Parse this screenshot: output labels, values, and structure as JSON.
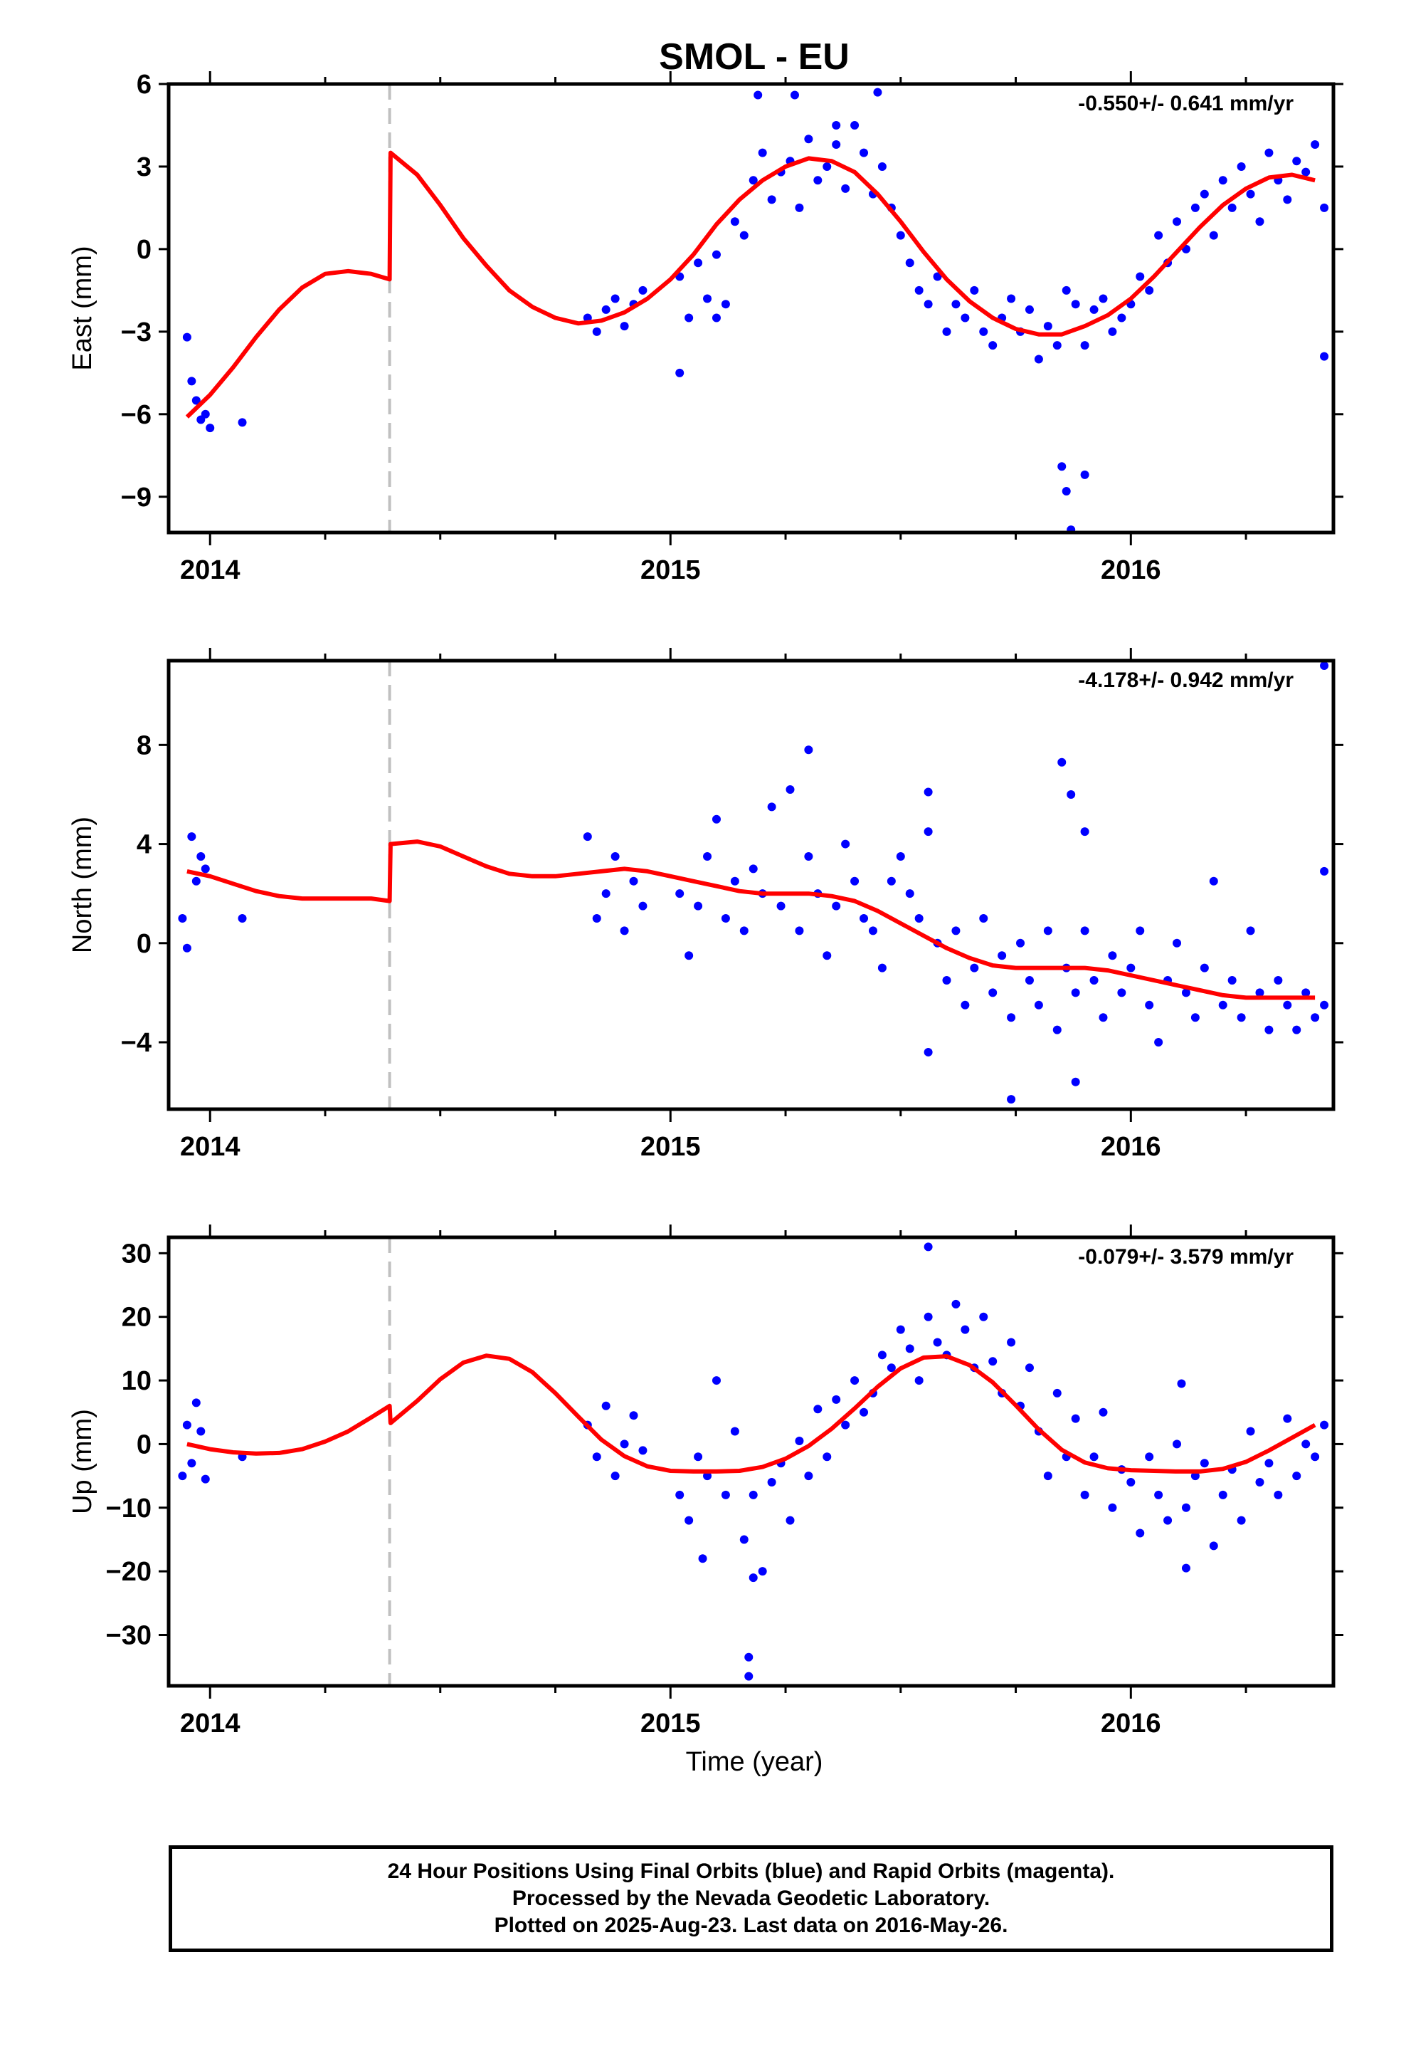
{
  "title": "SMOL - EU",
  "xlabel": "Time (year)",
  "footer": {
    "line1": "24 Hour Positions Using Final Orbits (blue) and Rapid Orbits (magenta).",
    "line2": "Processed by the Nevada Geodetic Laboratory.",
    "line3": "Plotted on 2025-Aug-23. Last data on 2016-May-26."
  },
  "colors": {
    "points": "#0000ff",
    "fit": "#ff0000",
    "break_line": "#c0c0c0",
    "frame": "#000000"
  },
  "chart_data": [
    {
      "type": "scatter",
      "component": "East",
      "ylabel": "East (mm)",
      "rate_label": "-0.550+/- 0.641 mm/yr",
      "xlim": [
        2013.91,
        2016.44
      ],
      "ylim": [
        -10.3,
        6.0
      ],
      "yticks": [
        6,
        3,
        0,
        -3,
        -6,
        -9
      ],
      "xticks": [
        2014,
        2015,
        2016
      ],
      "break_line_x": 2014.39,
      "fit_curve": {
        "name": "model",
        "x": [
          2013.95,
          2014.0,
          2014.05,
          2014.1,
          2014.15,
          2014.2,
          2014.25,
          2014.3,
          2014.35,
          2014.39,
          2014.392,
          2014.45,
          2014.5,
          2014.55,
          2014.6,
          2014.65,
          2014.7,
          2014.75,
          2014.8,
          2014.85,
          2014.9,
          2014.95,
          2015.0,
          2015.05,
          2015.1,
          2015.15,
          2015.2,
          2015.25,
          2015.3,
          2015.35,
          2015.4,
          2015.45,
          2015.5,
          2015.55,
          2015.6,
          2015.65,
          2015.7,
          2015.75,
          2015.8,
          2015.85,
          2015.9,
          2015.95,
          2016.0,
          2016.05,
          2016.1,
          2016.15,
          2016.2,
          2016.25,
          2016.3,
          2016.35,
          2016.4
        ],
        "y": [
          -6.1,
          -5.3,
          -4.3,
          -3.2,
          -2.2,
          -1.4,
          -0.9,
          -0.8,
          -0.9,
          -1.1,
          3.5,
          2.7,
          1.6,
          0.4,
          -0.6,
          -1.5,
          -2.1,
          -2.5,
          -2.7,
          -2.6,
          -2.3,
          -1.8,
          -1.1,
          -0.2,
          0.9,
          1.8,
          2.5,
          3.0,
          3.3,
          3.2,
          2.8,
          2.0,
          1.0,
          -0.1,
          -1.1,
          -1.9,
          -2.5,
          -2.9,
          -3.1,
          -3.1,
          -2.8,
          -2.4,
          -1.8,
          -1.0,
          -0.1,
          0.8,
          1.6,
          2.2,
          2.6,
          2.7,
          2.5
        ]
      },
      "points": {
        "name": "daily positions",
        "x": [
          2013.95,
          2013.96,
          2013.97,
          2013.98,
          2013.99,
          2014.0,
          2014.07,
          2014.82,
          2014.84,
          2014.86,
          2014.88,
          2014.9,
          2014.92,
          2014.94,
          2015.02,
          2015.04,
          2015.06,
          2015.08,
          2015.1,
          2015.12,
          2015.14,
          2015.16,
          2015.18,
          2015.2,
          2015.22,
          2015.24,
          2015.26,
          2015.28,
          2015.3,
          2015.32,
          2015.34,
          2015.36,
          2015.38,
          2015.4,
          2015.42,
          2015.44,
          2015.46,
          2015.48,
          2015.5,
          2015.52,
          2015.54,
          2015.56,
          2015.58,
          2015.6,
          2015.62,
          2015.64,
          2015.66,
          2015.68,
          2015.7,
          2015.72,
          2015.74,
          2015.76,
          2015.78,
          2015.8,
          2015.82,
          2015.84,
          2015.86,
          2015.88,
          2015.9,
          2015.92,
          2015.94,
          2015.96,
          2015.98,
          2016.0,
          2016.02,
          2016.04,
          2016.06,
          2016.08,
          2016.1,
          2016.12,
          2016.14,
          2016.16,
          2016.18,
          2016.2,
          2016.22,
          2016.24,
          2016.26,
          2016.28,
          2016.3,
          2016.32,
          2016.34,
          2016.36,
          2016.38,
          2016.4,
          2016.42,
          2015.19,
          2015.27,
          2015.36,
          2015.45,
          2015.85,
          2015.86,
          2015.87,
          2015.9,
          2016.42,
          2015.02,
          2015.1
        ],
        "y": [
          -3.2,
          -4.8,
          -5.5,
          -6.2,
          -6.0,
          -6.5,
          -6.3,
          -2.5,
          -3.0,
          -2.2,
          -1.8,
          -2.8,
          -2.0,
          -1.5,
          -1.0,
          -2.5,
          -0.5,
          -1.8,
          -0.2,
          -2.0,
          1.0,
          0.5,
          2.5,
          3.5,
          1.8,
          2.8,
          3.2,
          1.5,
          4.0,
          2.5,
          3.0,
          3.8,
          2.2,
          4.5,
          3.5,
          2.0,
          3.0,
          1.5,
          0.5,
          -0.5,
          -1.5,
          -2.0,
          -1.0,
          -3.0,
          -2.0,
          -2.5,
          -1.5,
          -3.0,
          -3.5,
          -2.5,
          -1.8,
          -3.0,
          -2.2,
          -4.0,
          -2.8,
          -3.5,
          -1.5,
          -2.0,
          -3.5,
          -2.2,
          -1.8,
          -3.0,
          -2.5,
          -2.0,
          -1.0,
          -1.5,
          0.5,
          -0.5,
          1.0,
          0.0,
          1.5,
          2.0,
          0.5,
          2.5,
          1.5,
          3.0,
          2.0,
          1.0,
          3.5,
          2.5,
          1.8,
          3.2,
          2.8,
          3.8,
          1.5,
          5.6,
          5.6,
          4.5,
          5.7,
          -7.9,
          -8.8,
          -10.2,
          -8.2,
          -3.9,
          -4.5,
          -2.5
        ]
      }
    },
    {
      "type": "scatter",
      "component": "North",
      "ylabel": "North (mm)",
      "rate_label": "-4.178+/- 0.942 mm/yr",
      "xlim": [
        2013.91,
        2016.44
      ],
      "ylim": [
        -6.7,
        11.4
      ],
      "yticks": [
        8,
        4,
        0,
        -4
      ],
      "xticks": [
        2014,
        2015,
        2016
      ],
      "break_line_x": 2014.39,
      "fit_curve": {
        "name": "model",
        "x": [
          2013.95,
          2014.0,
          2014.05,
          2014.1,
          2014.15,
          2014.2,
          2014.25,
          2014.3,
          2014.35,
          2014.39,
          2014.392,
          2014.45,
          2014.5,
          2014.55,
          2014.6,
          2014.65,
          2014.7,
          2014.75,
          2014.8,
          2014.85,
          2014.9,
          2014.95,
          2015.0,
          2015.05,
          2015.1,
          2015.15,
          2015.2,
          2015.25,
          2015.3,
          2015.35,
          2015.4,
          2015.45,
          2015.5,
          2015.55,
          2015.6,
          2015.65,
          2015.7,
          2015.75,
          2015.8,
          2015.85,
          2015.9,
          2015.95,
          2016.0,
          2016.05,
          2016.1,
          2016.15,
          2016.2,
          2016.25,
          2016.3,
          2016.35,
          2016.4
        ],
        "y": [
          2.9,
          2.7,
          2.4,
          2.1,
          1.9,
          1.8,
          1.8,
          1.8,
          1.8,
          1.7,
          4.0,
          4.1,
          3.9,
          3.5,
          3.1,
          2.8,
          2.7,
          2.7,
          2.8,
          2.9,
          3.0,
          2.9,
          2.7,
          2.5,
          2.3,
          2.1,
          2.0,
          2.0,
          2.0,
          1.9,
          1.7,
          1.3,
          0.8,
          0.3,
          -0.2,
          -0.6,
          -0.9,
          -1.0,
          -1.0,
          -1.0,
          -1.0,
          -1.1,
          -1.3,
          -1.5,
          -1.7,
          -1.9,
          -2.1,
          -2.2,
          -2.2,
          -2.2,
          -2.2
        ]
      },
      "points": {
        "name": "daily positions",
        "x": [
          2013.94,
          2013.95,
          2013.96,
          2013.97,
          2013.98,
          2013.99,
          2014.07,
          2014.82,
          2014.84,
          2014.86,
          2014.88,
          2014.9,
          2014.92,
          2014.94,
          2015.02,
          2015.04,
          2015.06,
          2015.08,
          2015.1,
          2015.12,
          2015.14,
          2015.16,
          2015.18,
          2015.2,
          2015.22,
          2015.24,
          2015.26,
          2015.28,
          2015.3,
          2015.32,
          2015.34,
          2015.36,
          2015.38,
          2015.4,
          2015.42,
          2015.44,
          2015.46,
          2015.48,
          2015.5,
          2015.52,
          2015.54,
          2015.56,
          2015.58,
          2015.6,
          2015.62,
          2015.64,
          2015.66,
          2015.68,
          2015.7,
          2015.72,
          2015.74,
          2015.76,
          2015.78,
          2015.8,
          2015.82,
          2015.84,
          2015.86,
          2015.88,
          2015.9,
          2015.92,
          2015.94,
          2015.96,
          2015.98,
          2016.0,
          2016.02,
          2016.04,
          2016.06,
          2016.08,
          2016.1,
          2016.12,
          2016.14,
          2016.16,
          2016.18,
          2016.2,
          2016.22,
          2016.24,
          2016.26,
          2016.28,
          2016.3,
          2016.32,
          2016.34,
          2016.36,
          2016.38,
          2016.4,
          2016.42,
          2015.3,
          2015.56,
          2015.85,
          2015.87,
          2015.9,
          2016.42,
          2016.42,
          2015.74,
          2015.88,
          2015.56
        ],
        "y": [
          1.0,
          -0.2,
          4.3,
          2.5,
          3.5,
          3.0,
          1.0,
          4.3,
          1.0,
          2.0,
          3.5,
          0.5,
          2.5,
          1.5,
          2.0,
          -0.5,
          1.5,
          3.5,
          5.0,
          1.0,
          2.5,
          0.5,
          3.0,
          2.0,
          5.5,
          1.5,
          6.2,
          0.5,
          3.5,
          2.0,
          -0.5,
          1.5,
          4.0,
          2.5,
          1.0,
          0.5,
          -1.0,
          2.5,
          3.5,
          2.0,
          1.0,
          4.5,
          0.0,
          -1.5,
          0.5,
          -2.5,
          -1.0,
          1.0,
          -2.0,
          -0.5,
          -3.0,
          0.0,
          -1.5,
          -2.5,
          0.5,
          -3.5,
          -1.0,
          -2.0,
          0.5,
          -1.5,
          -3.0,
          -0.5,
          -2.0,
          -1.0,
          0.5,
          -2.5,
          -4.0,
          -1.5,
          0.0,
          -2.0,
          -3.0,
          -1.0,
          2.5,
          -2.5,
          -1.5,
          -3.0,
          0.5,
          -2.0,
          -3.5,
          -1.5,
          -2.5,
          -3.5,
          -2.0,
          -3.0,
          -2.5,
          7.8,
          6.1,
          7.3,
          6.0,
          4.5,
          11.2,
          2.9,
          -6.3,
          -5.6,
          -4.4
        ]
      }
    },
    {
      "type": "scatter",
      "component": "Up",
      "ylabel": "Up (mm)",
      "rate_label": "-0.079+/- 3.579 mm/yr",
      "xlim": [
        2013.91,
        2016.44
      ],
      "ylim": [
        -38.0,
        32.5
      ],
      "yticks": [
        30,
        20,
        10,
        0,
        -10,
        -20,
        -30
      ],
      "xticks": [
        2014,
        2015,
        2016
      ],
      "break_line_x": 2014.39,
      "fit_curve": {
        "name": "model",
        "x": [
          2013.95,
          2014.0,
          2014.05,
          2014.1,
          2014.15,
          2014.2,
          2014.25,
          2014.3,
          2014.35,
          2014.39,
          2014.392,
          2014.45,
          2014.5,
          2014.55,
          2014.6,
          2014.65,
          2014.7,
          2014.75,
          2014.8,
          2014.85,
          2014.9,
          2014.95,
          2015.0,
          2015.05,
          2015.1,
          2015.15,
          2015.2,
          2015.25,
          2015.3,
          2015.35,
          2015.4,
          2015.45,
          2015.5,
          2015.55,
          2015.6,
          2015.65,
          2015.7,
          2015.75,
          2015.8,
          2015.85,
          2015.9,
          2015.95,
          2016.0,
          2016.05,
          2016.1,
          2016.15,
          2016.2,
          2016.25,
          2016.3,
          2016.35,
          2016.4
        ],
        "y": [
          0.0,
          -0.8,
          -1.3,
          -1.5,
          -1.4,
          -0.8,
          0.4,
          2.0,
          4.2,
          6.0,
          3.3,
          6.8,
          10.2,
          12.8,
          13.9,
          13.4,
          11.3,
          8.0,
          4.3,
          0.7,
          -1.9,
          -3.5,
          -4.2,
          -4.3,
          -4.3,
          -4.2,
          -3.6,
          -2.3,
          -0.3,
          2.4,
          5.6,
          9.0,
          11.9,
          13.6,
          13.8,
          12.4,
          9.7,
          6.1,
          2.3,
          -0.9,
          -2.9,
          -3.8,
          -4.1,
          -4.2,
          -4.3,
          -4.3,
          -3.9,
          -2.8,
          -1.0,
          1.0,
          3.0
        ]
      },
      "points": {
        "name": "daily positions",
        "x": [
          2013.94,
          2013.95,
          2013.96,
          2013.97,
          2013.98,
          2013.99,
          2014.07,
          2014.82,
          2014.84,
          2014.86,
          2014.88,
          2014.9,
          2014.92,
          2014.94,
          2015.02,
          2015.04,
          2015.06,
          2015.08,
          2015.1,
          2015.12,
          2015.14,
          2015.16,
          2015.18,
          2015.2,
          2015.22,
          2015.24,
          2015.26,
          2015.28,
          2015.3,
          2015.32,
          2015.34,
          2015.36,
          2015.38,
          2015.4,
          2015.42,
          2015.44,
          2015.46,
          2015.48,
          2015.5,
          2015.52,
          2015.54,
          2015.56,
          2015.58,
          2015.6,
          2015.62,
          2015.64,
          2015.66,
          2015.68,
          2015.7,
          2015.72,
          2015.74,
          2015.76,
          2015.78,
          2015.8,
          2015.82,
          2015.84,
          2015.86,
          2015.88,
          2015.9,
          2015.92,
          2015.94,
          2015.96,
          2015.98,
          2016.0,
          2016.02,
          2016.04,
          2016.06,
          2016.08,
          2016.1,
          2016.12,
          2016.14,
          2016.16,
          2016.18,
          2016.2,
          2016.22,
          2016.24,
          2016.26,
          2016.28,
          2016.3,
          2016.32,
          2016.34,
          2016.36,
          2016.38,
          2016.4,
          2016.42,
          2015.56,
          2015.17,
          2015.17,
          2015.07,
          2015.18,
          2016.11,
          2016.12
        ],
        "y": [
          -5.0,
          3.0,
          -3.0,
          6.5,
          2.0,
          -5.5,
          -2.0,
          3.0,
          -2.0,
          6.0,
          -5.0,
          0.0,
          4.5,
          -1.0,
          -8.0,
          -12.0,
          -2.0,
          -5.0,
          10.0,
          -8.0,
          2.0,
          -15.0,
          -8.0,
          -20.0,
          -6.0,
          -3.0,
          -12.0,
          0.5,
          -5.0,
          5.5,
          -2.0,
          7.0,
          3.0,
          10.0,
          5.0,
          8.0,
          14.0,
          12.0,
          18.0,
          15.0,
          10.0,
          20.0,
          16.0,
          14.0,
          22.0,
          18.0,
          12.0,
          20.0,
          13.0,
          8.0,
          16.0,
          6.0,
          12.0,
          2.0,
          -5.0,
          8.0,
          -2.0,
          4.0,
          -8.0,
          -2.0,
          5.0,
          -10.0,
          -4.0,
          -6.0,
          -14.0,
          -2.0,
          -8.0,
          -12.0,
          0.0,
          -10.0,
          -5.0,
          -3.0,
          -16.0,
          -8.0,
          -4.0,
          -12.0,
          2.0,
          -6.0,
          -3.0,
          -8.0,
          4.0,
          -5.0,
          0.0,
          -2.0,
          3.0,
          31.0,
          -33.5,
          -36.5,
          -18.0,
          -21.0,
          9.5,
          -19.5
        ]
      }
    }
  ]
}
